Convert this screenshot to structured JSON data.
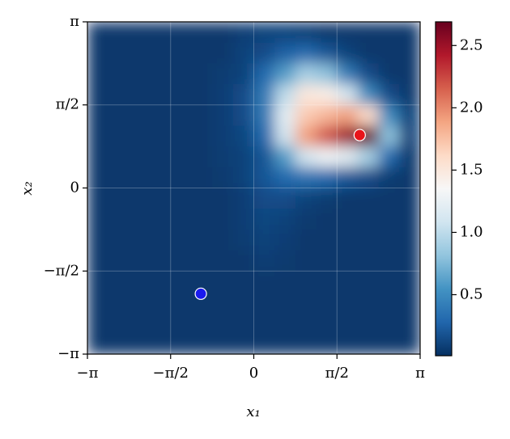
{
  "chart_data": {
    "type": "heatmap",
    "xlabel": "x₁",
    "ylabel": "x₂",
    "xlim": [
      -3.14159,
      3.14159
    ],
    "ylim": [
      -3.14159,
      3.14159
    ],
    "xticks": [
      {
        "value": -3.14159,
        "label": "−π"
      },
      {
        "value": -1.5708,
        "label": "−π/2"
      },
      0,
      {
        "value": 1.5708,
        "label": "π/2"
      },
      {
        "value": 3.14159,
        "label": "π"
      }
    ],
    "yticks": [
      {
        "value": -3.14159,
        "label": "−π"
      },
      {
        "value": -1.5708,
        "label": "−π/2"
      },
      0,
      {
        "value": 1.5708,
        "label": "π/2"
      },
      {
        "value": 3.14159,
        "label": "π"
      }
    ],
    "grid": true,
    "z": [
      [
        0.05,
        0.05,
        0.05,
        0.05,
        0.05,
        0.05,
        0.05,
        0.08,
        0.1,
        0.1,
        0.08,
        0.05,
        0.05,
        0.05,
        0.05,
        0.05
      ],
      [
        0.05,
        0.05,
        0.05,
        0.05,
        0.05,
        0.05,
        0.05,
        0.1,
        0.15,
        0.25,
        0.3,
        0.2,
        0.1,
        0.05,
        0.05,
        0.05
      ],
      [
        0.05,
        0.05,
        0.05,
        0.05,
        0.05,
        0.05,
        0.07,
        0.1,
        0.3,
        0.6,
        0.9,
        0.8,
        0.4,
        0.15,
        0.05,
        0.05
      ],
      [
        0.05,
        0.05,
        0.05,
        0.05,
        0.05,
        0.05,
        0.08,
        0.15,
        0.4,
        1.0,
        1.5,
        1.45,
        1.1,
        0.5,
        0.15,
        0.05
      ],
      [
        0.05,
        0.05,
        0.05,
        0.05,
        0.05,
        0.05,
        0.08,
        0.15,
        0.4,
        1.2,
        1.7,
        1.8,
        1.9,
        1.6,
        0.5,
        0.1
      ],
      [
        0.05,
        0.05,
        0.05,
        0.05,
        0.05,
        0.05,
        0.08,
        0.12,
        0.3,
        1.1,
        1.9,
        2.2,
        2.5,
        2.68,
        0.8,
        0.1
      ],
      [
        0.05,
        0.05,
        0.05,
        0.05,
        0.05,
        0.05,
        0.07,
        0.1,
        0.2,
        0.6,
        1.1,
        1.3,
        1.2,
        0.9,
        0.3,
        0.05
      ],
      [
        0.05,
        0.05,
        0.05,
        0.05,
        0.05,
        0.05,
        0.06,
        0.1,
        0.2,
        0.3,
        0.35,
        0.3,
        0.2,
        0.15,
        0.07,
        0.05
      ],
      [
        0.05,
        0.05,
        0.05,
        0.05,
        0.05,
        0.05,
        0.05,
        0.08,
        0.15,
        0.15,
        0.1,
        0.07,
        0.05,
        0.05,
        0.05,
        0.05
      ],
      [
        0.05,
        0.05,
        0.05,
        0.05,
        0.05,
        0.05,
        0.05,
        0.08,
        0.12,
        0.1,
        0.06,
        0.05,
        0.05,
        0.05,
        0.05,
        0.05
      ],
      [
        0.05,
        0.05,
        0.05,
        0.05,
        0.05,
        0.05,
        0.05,
        0.07,
        0.1,
        0.08,
        0.05,
        0.05,
        0.05,
        0.05,
        0.05,
        0.05
      ],
      [
        0.05,
        0.05,
        0.05,
        0.05,
        0.05,
        0.05,
        0.05,
        0.05,
        0.08,
        0.06,
        0.05,
        0.05,
        0.05,
        0.05,
        0.05,
        0.05
      ],
      [
        0.05,
        0.05,
        0.05,
        0.05,
        0.05,
        0.05,
        0.05,
        0.05,
        0.05,
        0.05,
        0.05,
        0.05,
        0.05,
        0.05,
        0.05,
        0.05
      ],
      [
        0.05,
        0.05,
        0.05,
        0.05,
        0.05,
        0.05,
        0.05,
        0.05,
        0.05,
        0.05,
        0.05,
        0.05,
        0.05,
        0.05,
        0.05,
        0.05
      ],
      [
        0.05,
        0.05,
        0.05,
        0.05,
        0.05,
        0.05,
        0.05,
        0.05,
        0.05,
        0.05,
        0.05,
        0.05,
        0.05,
        0.05,
        0.05,
        0.05
      ],
      [
        0.05,
        0.05,
        0.05,
        0.05,
        0.05,
        0.05,
        0.05,
        0.05,
        0.05,
        0.05,
        0.05,
        0.05,
        0.05,
        0.05,
        0.05,
        0.05
      ]
    ],
    "clim": [
      0.01,
      2.69
    ],
    "cticks": [
      0.5,
      {
        "value": 1.0,
        "label": "1.0"
      },
      1.5,
      {
        "value": 2.0,
        "label": "2.0"
      },
      2.5
    ],
    "colormap": [
      "#053061",
      "#2166ac",
      "#4393c3",
      "#92c5de",
      "#d1e5f0",
      "#f7f7f7",
      "#fddbc7",
      "#f4a582",
      "#d6604d",
      "#b2182b",
      "#67001f"
    ],
    "series": [
      {
        "x": [
          2.0
        ],
        "y": [
          1.0
        ],
        "color": "#e8141a"
      },
      {
        "x": [
          -1.0
        ],
        "y": [
          -2.0
        ],
        "color": "#1a1aee"
      }
    ]
  }
}
